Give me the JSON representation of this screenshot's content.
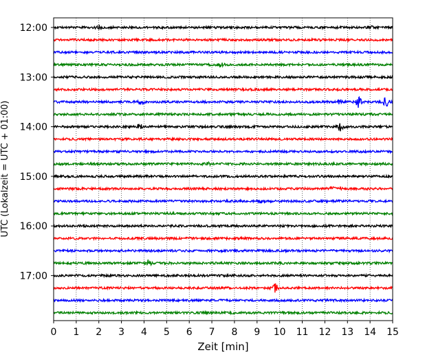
{
  "chart_data": {
    "type": "line",
    "title": "",
    "xlabel": "Zeit  [min]",
    "ylabel": "UTC (Lokalzeit = UTC + 01:00)",
    "xlim": [
      0,
      15
    ],
    "x_ticks": [
      "0",
      "1",
      "2",
      "3",
      "4",
      "5",
      "6",
      "7",
      "8",
      "9",
      "10",
      "11",
      "12",
      "13",
      "14",
      "15"
    ],
    "y_ticks": [
      "12:00",
      "13:00",
      "14:00",
      "15:00",
      "16:00",
      "17:00"
    ],
    "grid": "vertical-dotted",
    "color_cycle": [
      "#000000",
      "#ff0000",
      "#0000ff",
      "#008000"
    ],
    "series": [
      {
        "start": "12:00",
        "events": [
          {
            "x": 2.0,
            "amp": 0.6
          },
          {
            "x": 14.0,
            "amp": 0.6
          }
        ]
      },
      {
        "start": "12:15",
        "events": []
      },
      {
        "start": "12:30",
        "events": []
      },
      {
        "start": "12:45",
        "events": [
          {
            "x": 7.4,
            "amp": 0.7
          }
        ]
      },
      {
        "start": "13:00",
        "events": []
      },
      {
        "start": "13:15",
        "events": []
      },
      {
        "start": "13:30",
        "events": [
          {
            "x": 3.9,
            "amp": 0.9
          },
          {
            "x": 12.7,
            "amp": 0.8
          },
          {
            "x": 13.5,
            "amp": 2.0
          },
          {
            "x": 14.7,
            "amp": 1.4
          }
        ]
      },
      {
        "start": "13:45",
        "events": []
      },
      {
        "start": "14:00",
        "events": [
          {
            "x": 3.8,
            "amp": 0.8
          },
          {
            "x": 12.7,
            "amp": 1.6
          }
        ]
      },
      {
        "start": "14:15",
        "events": []
      },
      {
        "start": "14:30",
        "events": []
      },
      {
        "start": "14:45",
        "events": [
          {
            "x": 6.8,
            "amp": 0.4
          }
        ]
      },
      {
        "start": "15:00",
        "events": []
      },
      {
        "start": "15:15",
        "events": [
          {
            "x": 12.3,
            "amp": 0.8
          },
          {
            "x": 12.7,
            "amp": 0.6
          }
        ]
      },
      {
        "start": "15:30",
        "events": [
          {
            "x": 9.2,
            "amp": 0.6
          }
        ]
      },
      {
        "start": "15:45",
        "events": []
      },
      {
        "start": "16:00",
        "events": []
      },
      {
        "start": "16:15",
        "events": []
      },
      {
        "start": "16:30",
        "events": [
          {
            "x": 9.5,
            "amp": 0.3
          }
        ]
      },
      {
        "start": "16:45",
        "events": [
          {
            "x": 4.2,
            "amp": 1.0
          }
        ]
      },
      {
        "start": "17:00",
        "events": []
      },
      {
        "start": "17:15",
        "events": [
          {
            "x": 9.8,
            "amp": 1.3
          }
        ]
      },
      {
        "start": "17:30",
        "events": []
      },
      {
        "start": "17:45",
        "events": []
      }
    ]
  }
}
